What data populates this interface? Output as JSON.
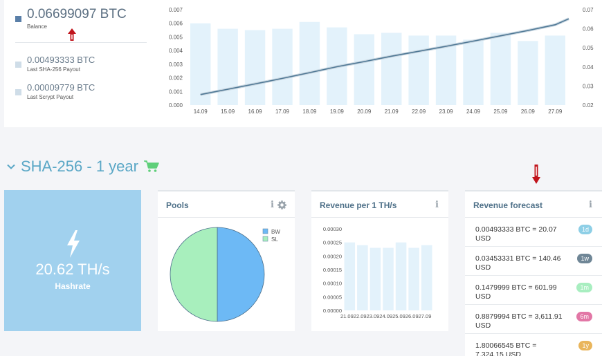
{
  "balance": {
    "main": {
      "value": "0.06699097 BTC",
      "label": "Balance"
    },
    "sha": {
      "value": "0.00493333 BTC",
      "label": "Last SHA-256 Payout"
    },
    "scrypt": {
      "value": "0.00009779 BTC",
      "label": "Last Scrypt Payout"
    }
  },
  "colors": {
    "accent": "#5aa7c6",
    "bar": "#e3f2fb",
    "line": "#4f7895",
    "hashrate_tile": "#a1d1ee",
    "pie_bw": "#6db9f5",
    "pie_sl": "#a8efbd",
    "arrow": "#c0141c"
  },
  "chart_data": [
    {
      "type": "bar+line",
      "categories": [
        "14.09",
        "15.09",
        "16.09",
        "17.09",
        "18.09",
        "19.09",
        "20.09",
        "21.09",
        "22.09",
        "23.09",
        "24.09",
        "25.09",
        "26.09",
        "27.09"
      ],
      "bar_values": [
        0.006,
        0.0056,
        0.0055,
        0.0056,
        0.0061,
        0.0057,
        0.0052,
        0.0053,
        0.0051,
        0.0051,
        0.0048,
        0.0053,
        0.0047,
        0.0051
      ],
      "line_values": [
        0.0255,
        0.0283,
        0.0311,
        0.034,
        0.037,
        0.0401,
        0.0428,
        0.0456,
        0.0482,
        0.0508,
        0.0535,
        0.0563,
        0.0591,
        0.0621,
        0.0652
      ],
      "line_x": [
        0,
        1,
        2,
        3,
        4,
        5,
        6,
        7,
        8,
        9,
        10,
        11,
        12,
        13,
        13.5
      ],
      "y_left_ticks": [
        "0.000",
        "0.001",
        "0.002",
        "0.003",
        "0.004",
        "0.005",
        "0.006",
        "0.007"
      ],
      "y_left_range": [
        0,
        0.007
      ],
      "y_right_ticks": [
        "0.02",
        "0.03",
        "0.04",
        "0.05",
        "0.06",
        "0.07"
      ],
      "y_right_range": [
        0.02,
        0.07
      ],
      "grid": false
    },
    {
      "type": "pie",
      "labels": [
        "BW",
        "SL"
      ],
      "values": [
        50,
        50
      ],
      "legend": "top-right"
    },
    {
      "type": "bar",
      "categories": [
        "21.09",
        "22.09",
        "23.09",
        "24.09",
        "25.09",
        "26.09",
        "27.09"
      ],
      "x_tick_text": "21.0922.0923.0924.0925.0926.0927.09",
      "values": [
        0.00025,
        0.00024,
        0.00023,
        0.00023,
        0.00025,
        0.00023,
        0.00024
      ],
      "y_ticks": [
        "0.00000",
        "0.00005",
        "0.00010",
        "0.00015",
        "0.00020",
        "0.00025",
        "0.00030"
      ],
      "ylim": [
        0,
        0.0003
      ]
    }
  ],
  "section": {
    "title": "SHA-256 - 1 year",
    "chevron_icon": "chevron-down-icon",
    "cart_icon": "shopping-cart-icon"
  },
  "hashrate": {
    "value": "20.62 TH/s",
    "label": "Hashrate",
    "icon": "lightning-bolt-icon"
  },
  "pools": {
    "title": "Pools",
    "info": "i"
  },
  "revenue_per_th": {
    "title": "Revenue per 1 TH/s",
    "info": "i"
  },
  "forecast": {
    "title": "Revenue forecast",
    "info": "i",
    "rows": [
      {
        "text": "0.00493333 BTC = 20.07 USD",
        "badge": "1d",
        "color": "#8ecfe6"
      },
      {
        "text": "0.03453331 BTC = 140.46 USD",
        "badge": "1w",
        "color": "#6f8696"
      },
      {
        "text": "0.1479999 BTC = 601.99 USD",
        "badge": "1m",
        "color": "#a8eec0"
      },
      {
        "text": "0.8879994 BTC = 3,611.91 USD",
        "badge": "6m",
        "color": "#e277a6"
      },
      {
        "text": "1.80066545 BTC = 7,324.15 USD",
        "badge": "1y",
        "color": "#e9b55c"
      }
    ]
  }
}
